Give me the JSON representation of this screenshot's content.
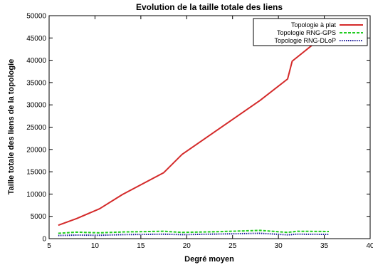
{
  "chart_data": {
    "type": "line",
    "title": "Evolution de la taille totale des liens",
    "xlabel": "Degré moyen",
    "ylabel": "Taille totale des liens de la topologie",
    "xlim": [
      5,
      40
    ],
    "ylim": [
      0,
      50000
    ],
    "xticks": [
      5,
      10,
      15,
      20,
      25,
      30,
      35,
      40
    ],
    "yticks": [
      0,
      5000,
      10000,
      15000,
      20000,
      25000,
      30000,
      35000,
      40000,
      45000,
      50000
    ],
    "grid": false,
    "legend_position": "top-right",
    "series": [
      {
        "name": "Topologie à plat",
        "color": "#d42a2a",
        "dash": "solid",
        "x": [
          6,
          8,
          10.5,
          13,
          17.5,
          19.5,
          28,
          31,
          31.5,
          35.5
        ],
        "y": [
          3000,
          4500,
          6700,
          9900,
          14800,
          18900,
          31000,
          35800,
          39800,
          46400
        ]
      },
      {
        "name": "Topologie RNG-GPS",
        "color": "#22cc22",
        "dash": "dashed",
        "x": [
          6,
          8,
          10.5,
          13,
          17.5,
          19.5,
          24,
          28,
          31,
          32,
          35.5
        ],
        "y": [
          1200,
          1450,
          1300,
          1500,
          1650,
          1400,
          1600,
          1850,
          1400,
          1650,
          1600
        ]
      },
      {
        "name": "Topologie RNG-DLoP",
        "color": "#1a1a99",
        "dash": "dotted",
        "x": [
          6,
          8,
          10.5,
          13,
          17.5,
          19.5,
          24,
          28,
          31,
          32,
          35.5
        ],
        "y": [
          700,
          800,
          750,
          900,
          1000,
          900,
          1050,
          1200,
          850,
          1000,
          950
        ]
      }
    ]
  }
}
